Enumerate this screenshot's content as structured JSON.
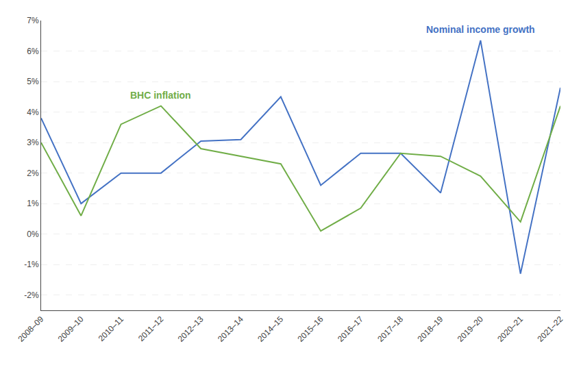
{
  "chart_data": {
    "type": "line",
    "categories": [
      "2008–09",
      "2009–10",
      "2010–11",
      "2011–12",
      "2012–13",
      "2013–14",
      "2014–15",
      "2015–16",
      "2016–17",
      "2017–18",
      "2018–19",
      "2019–20",
      "2020–21",
      "2021–22"
    ],
    "series": [
      {
        "name": "Nominal income growth",
        "color": "#4472C4",
        "values": [
          3.8,
          1.0,
          2.0,
          2.0,
          3.05,
          3.1,
          4.5,
          1.6,
          2.65,
          2.65,
          1.35,
          6.35,
          -1.3,
          4.8
        ]
      },
      {
        "name": "BHC inflation",
        "color": "#70AD47",
        "values": [
          3.0,
          0.6,
          3.6,
          4.2,
          2.8,
          2.55,
          2.3,
          0.1,
          0.85,
          2.65,
          2.55,
          1.9,
          0.4,
          4.2
        ]
      }
    ],
    "ylim": [
      -2.5,
      7.0
    ],
    "yticks": [
      {
        "value": -2,
        "label": "-2%"
      },
      {
        "value": -1,
        "label": "-1%"
      },
      {
        "value": 0,
        "label": "0%"
      },
      {
        "value": 1,
        "label": "1%"
      },
      {
        "value": 2,
        "label": "2%"
      },
      {
        "value": 3,
        "label": "3%"
      },
      {
        "value": 4,
        "label": "4%"
      },
      {
        "value": 5,
        "label": "5%"
      },
      {
        "value": 6,
        "label": "6%"
      },
      {
        "value": 7,
        "label": "7%"
      }
    ],
    "grid": "y"
  }
}
